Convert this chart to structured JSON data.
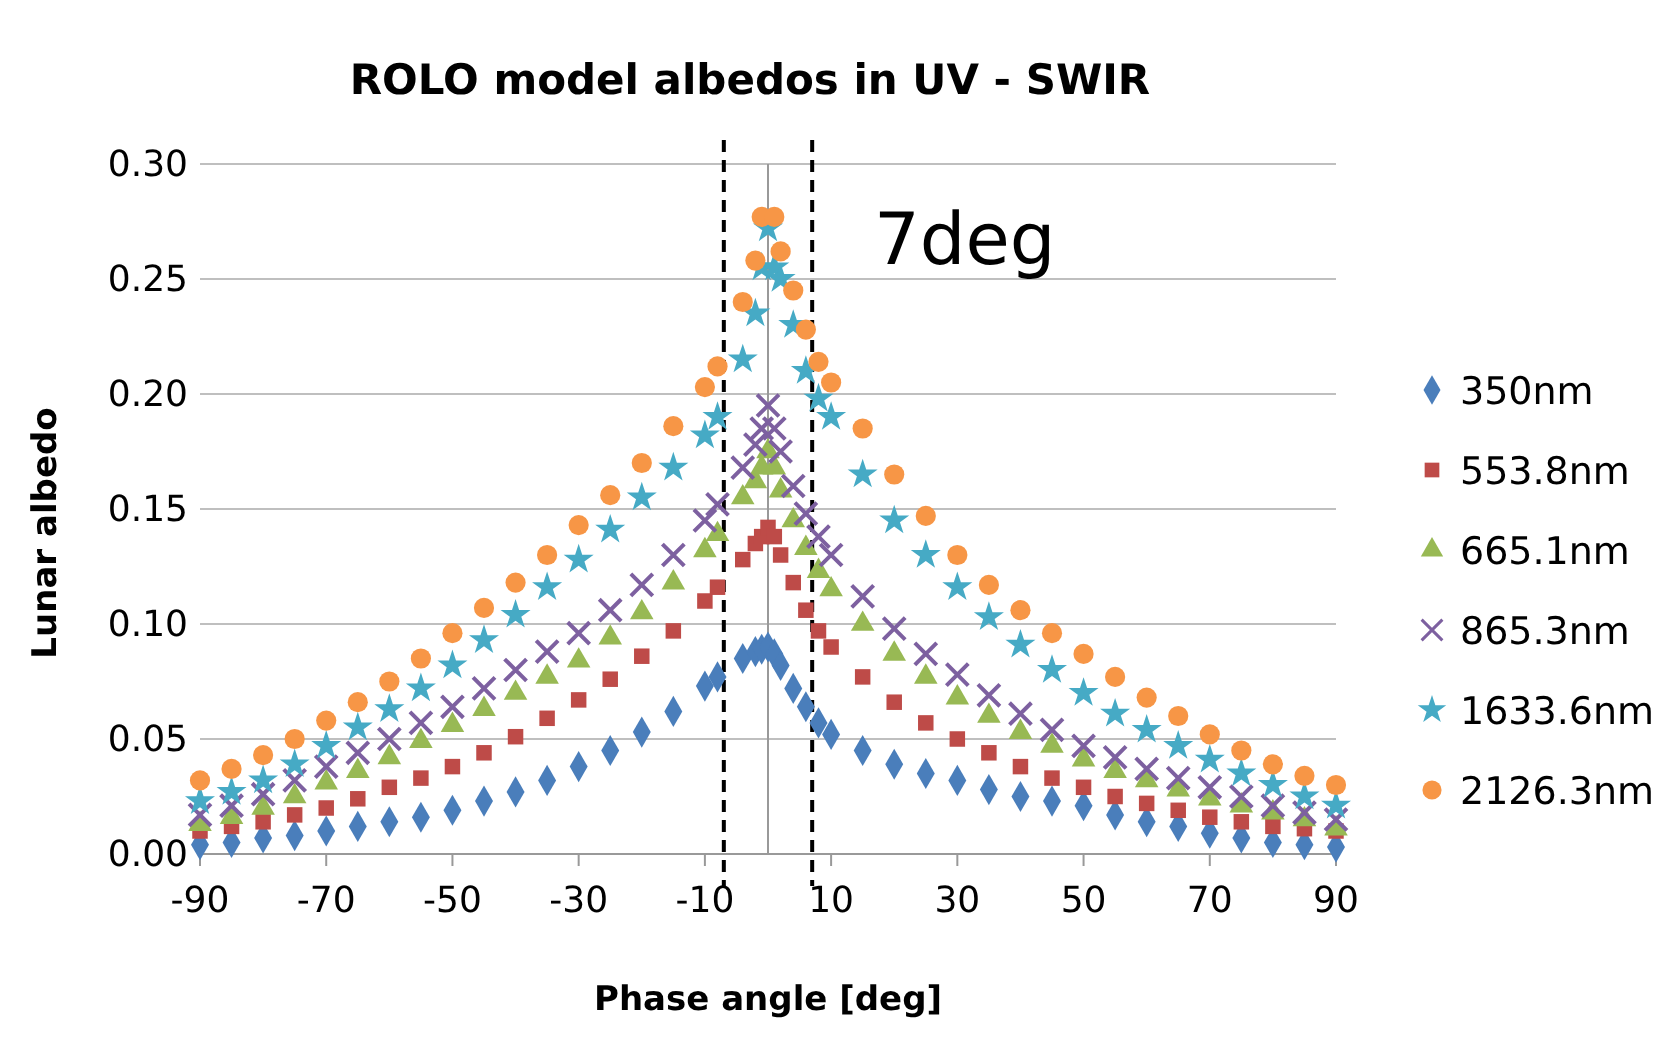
{
  "chart_data": {
    "type": "scatter",
    "title": "ROLO model albedos in UV - SWIR",
    "xlabel": "Phase angle [deg]",
    "ylabel": "Lunar albedo",
    "x": [
      -90,
      -85,
      -80,
      -75,
      -70,
      -65,
      -60,
      -55,
      -50,
      -45,
      -40,
      -35,
      -30,
      -25,
      -20,
      -15,
      -10,
      -8,
      -4,
      -2,
      -1,
      0,
      1,
      2,
      4,
      6,
      8,
      10,
      15,
      20,
      25,
      30,
      35,
      40,
      45,
      50,
      55,
      60,
      65,
      70,
      75,
      80,
      85,
      90
    ],
    "xlim": [
      -90,
      90
    ],
    "xticks": [
      -90,
      -70,
      -50,
      -30,
      -10,
      10,
      30,
      50,
      70,
      90
    ],
    "ylim": [
      0,
      0.3
    ],
    "yticks": [
      {
        "value": 0,
        "label": "0.00"
      },
      {
        "value": 0.05,
        "label": "0.05"
      },
      {
        "value": 0.1,
        "label": "0.10"
      },
      {
        "value": 0.15,
        "label": "0.15"
      },
      {
        "value": 0.2,
        "label": "0.20"
      },
      {
        "value": 0.25,
        "label": "0.25"
      },
      {
        "value": 0.3,
        "label": "0.30"
      }
    ],
    "grid": "y",
    "legend": "right",
    "series": [
      {
        "name": "350nm",
        "color": "#4a7ebb",
        "marker": "diamond",
        "values": [
          0.004,
          0.005,
          0.007,
          0.008,
          0.01,
          0.012,
          0.014,
          0.016,
          0.019,
          0.023,
          0.027,
          0.032,
          0.038,
          0.045,
          0.053,
          0.062,
          0.073,
          0.077,
          0.085,
          0.088,
          0.089,
          0.09,
          0.087,
          0.082,
          0.072,
          0.064,
          0.057,
          0.052,
          0.045,
          0.039,
          0.035,
          0.032,
          0.028,
          0.025,
          0.023,
          0.021,
          0.017,
          0.014,
          0.012,
          0.009,
          0.007,
          0.005,
          0.004,
          0.003
        ]
      },
      {
        "name": "553.8nm",
        "color": "#be4b48",
        "marker": "square",
        "values": [
          0.01,
          0.012,
          0.014,
          0.017,
          0.02,
          0.024,
          0.029,
          0.033,
          0.038,
          0.044,
          0.051,
          0.059,
          0.067,
          0.076,
          0.086,
          0.097,
          0.11,
          0.116,
          0.128,
          0.135,
          0.138,
          0.142,
          0.138,
          0.13,
          0.118,
          0.106,
          0.097,
          0.09,
          0.077,
          0.066,
          0.057,
          0.05,
          0.044,
          0.038,
          0.033,
          0.029,
          0.025,
          0.022,
          0.019,
          0.016,
          0.014,
          0.012,
          0.011,
          0.01
        ]
      },
      {
        "name": "665.1nm",
        "color": "#98b954",
        "marker": "triangle",
        "values": [
          0.013,
          0.016,
          0.02,
          0.025,
          0.031,
          0.036,
          0.042,
          0.049,
          0.056,
          0.063,
          0.07,
          0.077,
          0.084,
          0.094,
          0.105,
          0.118,
          0.132,
          0.139,
          0.155,
          0.162,
          0.168,
          0.175,
          0.168,
          0.158,
          0.145,
          0.133,
          0.123,
          0.115,
          0.1,
          0.087,
          0.077,
          0.068,
          0.06,
          0.053,
          0.047,
          0.041,
          0.036,
          0.032,
          0.028,
          0.024,
          0.021,
          0.018,
          0.015,
          0.011
        ]
      },
      {
        "name": "865.3nm",
        "color": "#7d60a0",
        "marker": "cross",
        "values": [
          0.017,
          0.021,
          0.026,
          0.032,
          0.038,
          0.044,
          0.05,
          0.057,
          0.064,
          0.072,
          0.08,
          0.088,
          0.096,
          0.106,
          0.117,
          0.13,
          0.145,
          0.152,
          0.168,
          0.178,
          0.185,
          0.195,
          0.185,
          0.175,
          0.16,
          0.148,
          0.138,
          0.13,
          0.112,
          0.098,
          0.087,
          0.078,
          0.069,
          0.061,
          0.054,
          0.047,
          0.042,
          0.037,
          0.033,
          0.029,
          0.025,
          0.021,
          0.018,
          0.015
        ]
      },
      {
        "name": "1633.6nm",
        "color": "#46aac5",
        "marker": "star",
        "values": [
          0.023,
          0.027,
          0.032,
          0.039,
          0.047,
          0.055,
          0.063,
          0.072,
          0.082,
          0.093,
          0.104,
          0.116,
          0.128,
          0.141,
          0.155,
          0.168,
          0.182,
          0.19,
          0.215,
          0.235,
          0.255,
          0.272,
          0.255,
          0.25,
          0.23,
          0.21,
          0.198,
          0.19,
          0.165,
          0.145,
          0.13,
          0.116,
          0.103,
          0.091,
          0.08,
          0.07,
          0.061,
          0.054,
          0.047,
          0.041,
          0.035,
          0.03,
          0.025,
          0.021
        ]
      },
      {
        "name": "2126.3nm",
        "color": "#f79646",
        "marker": "circle",
        "values": [
          0.032,
          0.037,
          0.043,
          0.05,
          0.058,
          0.066,
          0.075,
          0.085,
          0.096,
          0.107,
          0.118,
          0.13,
          0.143,
          0.156,
          0.17,
          0.186,
          0.203,
          0.212,
          0.24,
          0.258,
          0.277,
          null,
          0.277,
          0.262,
          0.245,
          0.228,
          0.214,
          0.205,
          0.185,
          0.165,
          0.147,
          0.13,
          0.117,
          0.106,
          0.096,
          0.087,
          0.077,
          0.068,
          0.06,
          0.052,
          0.045,
          0.039,
          0.034,
          0.03
        ]
      }
    ],
    "ref_lines": [
      {
        "axis": "x",
        "value": -7,
        "color": "#000000",
        "line_style": "dashed"
      },
      {
        "axis": "x",
        "value": 7,
        "color": "#000000",
        "line_style": "dashed"
      }
    ],
    "annotations": [
      "7deg"
    ]
  }
}
